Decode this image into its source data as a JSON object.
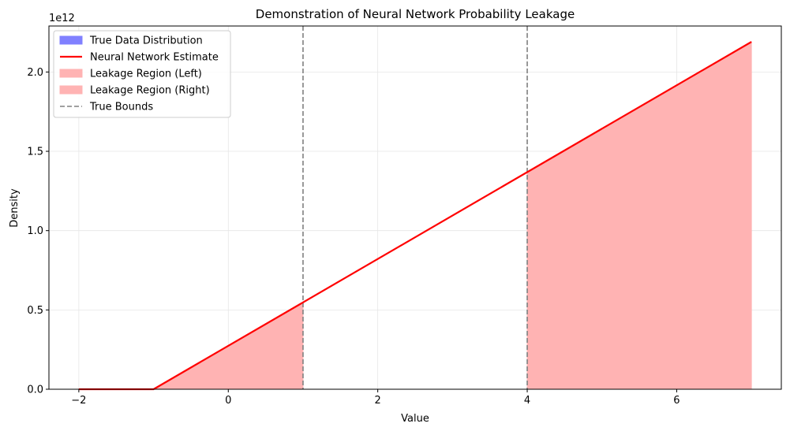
{
  "chart_data": {
    "type": "area",
    "title": "Demonstration of Neural Network Probability Leakage",
    "xlabel": "Value",
    "ylabel": "Density",
    "y_offset_label": "1e12",
    "xlim": [
      -2.4,
      7.4
    ],
    "ylim": [
      0,
      2.29
    ],
    "x_ticks": [
      -2,
      0,
      2,
      4,
      6
    ],
    "x_tick_labels": [
      "−2",
      "0",
      "2",
      "4",
      "6"
    ],
    "y_ticks": [
      0.0,
      0.5,
      1.0,
      1.5,
      2.0
    ],
    "y_tick_labels": [
      "0.0",
      "0.5",
      "1.0",
      "1.5",
      "2.0"
    ],
    "grid": true,
    "legend_position": "upper-left",
    "true_bounds": [
      1,
      4
    ],
    "series": [
      {
        "name": "True Data Distribution",
        "kind": "fill",
        "color": "#8080ff",
        "x": [],
        "y": []
      },
      {
        "name": "Neural Network Estimate",
        "kind": "line",
        "color": "#ff0000",
        "x": [
          -2,
          -1,
          7
        ],
        "y": [
          0,
          0,
          2.19
        ]
      },
      {
        "name": "Leakage Region (Left)",
        "kind": "fill",
        "color": "#ffb3b3",
        "x": [
          -2,
          -1,
          1
        ],
        "y": [
          0,
          0,
          0.5475
        ]
      },
      {
        "name": "Leakage Region (Right)",
        "kind": "fill",
        "color": "#ffb3b3",
        "x": [
          4,
          7
        ],
        "y": [
          1.37,
          2.19
        ]
      },
      {
        "name": "True Bounds",
        "kind": "vline",
        "color": "#808080",
        "x": [
          1,
          4
        ]
      }
    ]
  }
}
